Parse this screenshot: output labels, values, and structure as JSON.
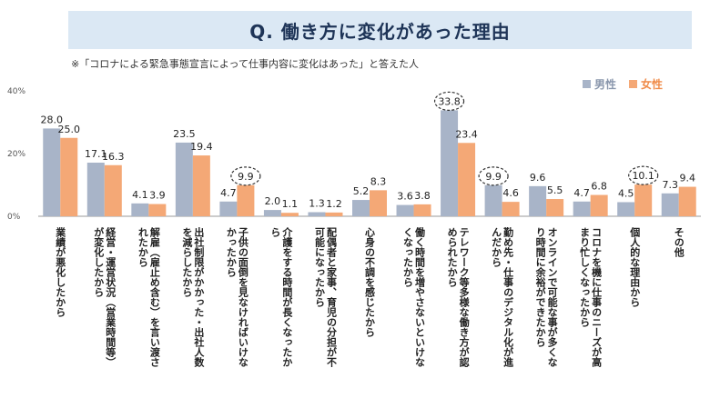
{
  "title": "Q. 働き方に変化があった理由",
  "note": "※「コロナによる緊急事態宣言によって仕事内容に変化はあった」と答えた人",
  "colors": {
    "male": "#a8b4c8",
    "female": "#f4a876",
    "title_bg": "#dbe8f4",
    "highlight": "#333333"
  },
  "chart_data": {
    "type": "bar",
    "title": "Q. 働き方に変化があった理由",
    "ylim": [
      0,
      40
    ],
    "yticks": [
      "0%",
      "20%",
      "40%"
    ],
    "grid": false,
    "legend_position": "top-right",
    "categories": [
      "業績が悪化したから",
      "経営・運営状況（営業時間等）が変化したから",
      "解雇（雇止め含む）を言い渡されたから",
      "出社制限がかかった・出社人数を減らしたから",
      "子供の面倒を見なければいけなかったから",
      "介護をする時間が長くなったから",
      "配偶者と家事、育児の分担が不可能になったから",
      "心身の不調を感じたから",
      "働く時間を増やさないといけなくなったから",
      "テレワーク等多様な働き方が認められたから",
      "勤め先・仕事のデジタル化が進んだから",
      "オンラインで可能な事が多くなり時間に余裕ができたから",
      "コロナを機に仕事のニーズが高まり忙しくなったから",
      "個人的な理由から",
      "その他"
    ],
    "series": [
      {
        "name": "男性",
        "values": [
          28.0,
          17.1,
          4.1,
          23.5,
          4.7,
          2.0,
          1.3,
          5.2,
          3.6,
          33.8,
          9.9,
          9.6,
          4.7,
          4.5,
          7.3
        ],
        "labels": [
          "28.0",
          "17.1",
          "4.1",
          "23.5",
          "4.7",
          "2.0",
          "1.3",
          "5.2",
          "3.6",
          "33.8",
          "9.9",
          "9.6",
          "4.7",
          "4.5",
          "7.3"
        ]
      },
      {
        "name": "女性",
        "values": [
          25.0,
          16.3,
          3.9,
          19.4,
          9.9,
          1.1,
          1.2,
          8.3,
          3.8,
          23.4,
          4.6,
          5.5,
          6.8,
          10.1,
          9.4
        ],
        "labels": [
          "25.0",
          "16.3",
          "3.9",
          "19.4",
          "9.9",
          "1.1",
          "1.2",
          "8.3",
          "3.8",
          "23.4",
          "4.6",
          "5.5",
          "6.8",
          "10.1",
          "9.4"
        ]
      }
    ],
    "highlighted": [
      {
        "series": 1,
        "index": 4
      },
      {
        "series": 0,
        "index": 9
      },
      {
        "series": 0,
        "index": 10
      },
      {
        "series": 1,
        "index": 13
      }
    ]
  }
}
